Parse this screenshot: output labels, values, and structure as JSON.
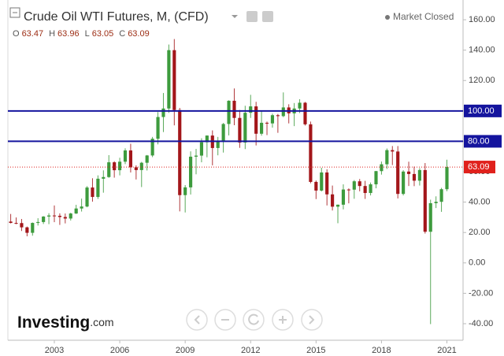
{
  "chart_data": {
    "type": "candlestick",
    "title": "Crude Oil WTI Futures, M, (CFD)",
    "status": "Market Closed",
    "ohlc_header": [
      {
        "label": "O",
        "value": 63.47
      },
      {
        "label": "H",
        "value": 63.96
      },
      {
        "label": "L",
        "value": 63.05
      },
      {
        "label": "C",
        "value": 63.09
      }
    ],
    "logo": {
      "brand": "Investing",
      "suffix": ".com"
    },
    "up_color": "#3d9b3d",
    "down_color": "#a3161a",
    "x": [
      2001.0,
      2001.25,
      2001.5,
      2001.75,
      2002.0,
      2002.25,
      2002.5,
      2002.75,
      2003.0,
      2003.25,
      2003.5,
      2003.75,
      2004.0,
      2004.25,
      2004.5,
      2004.75,
      2005.0,
      2005.25,
      2005.5,
      2005.75,
      2006.0,
      2006.25,
      2006.5,
      2006.75,
      2007.0,
      2007.25,
      2007.5,
      2007.75,
      2008.0,
      2008.25,
      2008.5,
      2008.75,
      2009.0,
      2009.25,
      2009.5,
      2009.75,
      2010.0,
      2010.25,
      2010.5,
      2010.75,
      2011.0,
      2011.25,
      2011.5,
      2011.75,
      2012.0,
      2012.25,
      2012.5,
      2012.75,
      2013.0,
      2013.25,
      2013.5,
      2013.75,
      2014.0,
      2014.25,
      2014.5,
      2014.75,
      2015.0,
      2015.25,
      2015.5,
      2015.75,
      2016.0,
      2016.25,
      2016.5,
      2016.75,
      2017.0,
      2017.25,
      2017.5,
      2017.75,
      2018.0,
      2018.25,
      2018.5,
      2018.75,
      2019.0,
      2019.25,
      2019.5,
      2019.75,
      2020.0,
      2020.25,
      2020.5,
      2020.75,
      2021.0
    ],
    "open": [
      27.2,
      26.3,
      26.2,
      23.4,
      19.8,
      26.3,
      26.9,
      30.5,
      31.2,
      31.0,
      30.2,
      29.2,
      32.5,
      35.8,
      37.1,
      49.6,
      43.4,
      55.4,
      56.5,
      66.2,
      61.0,
      66.6,
      74.0,
      62.9,
      61.1,
      65.9,
      70.7,
      81.7,
      96.0,
      101.6,
      140.0,
      100.6,
      44.6,
      49.7,
      69.9,
      70.6,
      79.4,
      83.8,
      75.6,
      80.0,
      91.4,
      106.7,
      95.4,
      79.2,
      98.8,
      103.0,
      85.0,
      92.2,
      91.8,
      97.2,
      96.6,
      102.3,
      98.4,
      101.6,
      105.4,
      91.2,
      53.3,
      47.6,
      59.5,
      45.1,
      37.0,
      38.3,
      48.3,
      48.2,
      53.7,
      50.6,
      46.0,
      51.7,
      60.4,
      64.9,
      74.2,
      73.3,
      45.4,
      60.1,
      58.5,
      54.1,
      61.1,
      20.5,
      39.3,
      40.2,
      48.5
    ],
    "high": [
      32.2,
      29.9,
      28.9,
      23.9,
      26.6,
      29.4,
      30.8,
      32.7,
      37.8,
      32.6,
      32.5,
      33.0,
      38.2,
      42.3,
      50.5,
      55.7,
      57.6,
      60.9,
      70.9,
      66.9,
      69.2,
      75.4,
      78.4,
      64.2,
      66.5,
      71.0,
      82.9,
      99.3,
      111.8,
      143.7,
      147.3,
      102.0,
      51.2,
      73.4,
      75.0,
      82.0,
      83.9,
      87.2,
      82.9,
      92.1,
      107.0,
      114.8,
      100.6,
      103.4,
      110.6,
      106.0,
      100.4,
      93.0,
      98.2,
      98.0,
      112.2,
      104.4,
      105.2,
      107.7,
      105.9,
      93.0,
      54.2,
      62.6,
      61.6,
      50.9,
      38.4,
      51.7,
      49.0,
      54.5,
      55.2,
      54.0,
      52.9,
      60.5,
      66.7,
      75.3,
      76.9,
      76.9,
      61.0,
      66.6,
      63.4,
      62.3,
      65.7,
      41.6,
      43.8,
      49.4,
      67.9
    ],
    "low": [
      26.0,
      25.5,
      21.0,
      17.5,
      17.9,
      24.6,
      25.6,
      25.5,
      26.8,
      25.0,
      26.0,
      27.9,
      32.2,
      33.8,
      36.6,
      40.3,
      42.1,
      46.2,
      56.0,
      56.1,
      57.6,
      65.0,
      59.5,
      54.9,
      49.9,
      60.8,
      69.6,
      78.0,
      86.1,
      98.7,
      90.5,
      33.9,
      33.2,
      45.0,
      58.3,
      66.2,
      69.5,
      64.2,
      70.8,
      72.6,
      83.9,
      90.6,
      75.7,
      74.9,
      95.4,
      77.3,
      83.7,
      84.1,
      89.0,
      85.6,
      95.9,
      91.8,
      90.0,
      98.6,
      90.4,
      52.4,
      42.0,
      47.0,
      37.8,
      34.5,
      26.1,
      35.2,
      39.2,
      42.2,
      47.1,
      42.1,
      44.4,
      49.1,
      58.1,
      61.8,
      64.4,
      42.4,
      44.4,
      50.6,
      50.5,
      50.9,
      19.3,
      -40.3,
      36.1,
      33.6,
      47.2
    ],
    "close": [
      26.3,
      26.2,
      23.4,
      19.8,
      26.3,
      26.9,
      30.5,
      31.2,
      31.0,
      30.2,
      29.2,
      32.5,
      35.8,
      37.1,
      49.6,
      43.4,
      55.4,
      56.5,
      66.2,
      61.0,
      66.6,
      74.0,
      62.9,
      61.1,
      65.9,
      70.7,
      81.7,
      96.0,
      101.6,
      140.0,
      100.6,
      44.6,
      49.7,
      69.9,
      70.6,
      79.4,
      83.8,
      75.6,
      80.0,
      91.4,
      106.7,
      95.4,
      79.2,
      98.8,
      103.0,
      85.0,
      92.2,
      91.8,
      97.2,
      96.6,
      102.3,
      98.4,
      101.6,
      105.4,
      91.2,
      53.3,
      47.6,
      59.5,
      45.1,
      37.0,
      38.3,
      48.3,
      48.2,
      53.7,
      50.6,
      46.0,
      51.7,
      60.4,
      64.9,
      74.2,
      73.3,
      45.4,
      60.1,
      58.5,
      54.1,
      61.1,
      20.5,
      39.3,
      40.2,
      48.5,
      63.09
    ],
    "xlim": [
      2000.87,
      2021.74
    ],
    "xticks": [
      2003,
      2006,
      2009,
      2012,
      2015,
      2018,
      2021
    ],
    "ylim": [
      -50.9,
      173.0
    ],
    "yticks": [
      {
        "value": 160,
        "label": "160.00"
      },
      {
        "value": 140,
        "label": "140.00"
      },
      {
        "value": 120,
        "label": "120.00"
      },
      {
        "value": 100,
        "label": "100.00"
      },
      {
        "value": 80,
        "label": "80.00"
      },
      {
        "value": 60,
        "label": "60.00"
      },
      {
        "value": 40,
        "label": "40.00"
      },
      {
        "value": 20,
        "label": "20.00"
      },
      {
        "value": 0,
        "label": "0.00"
      },
      {
        "value": -20,
        "label": "-20.00"
      },
      {
        "value": -40,
        "label": "-40.00"
      }
    ],
    "hlines": [
      {
        "value": 100,
        "label": "100.00",
        "color": "#14149e"
      },
      {
        "value": 80,
        "label": "80.00",
        "color": "#14149e"
      }
    ],
    "last_price": {
      "value": 63.09,
      "label": "63.09",
      "color": "#e0211c"
    }
  }
}
